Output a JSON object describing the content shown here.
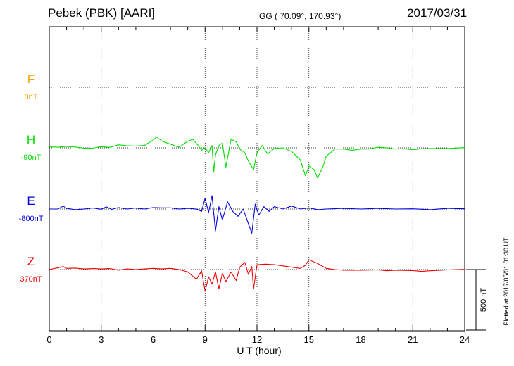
{
  "header": {
    "title": "Pebek (PBK)  [AARI]",
    "coords": "GG ( 70.09°, 170.93°)",
    "date": "2017/03/31"
  },
  "plotted_note": "Plotted at 2017/05/01 01:30 UT",
  "scale_bar": {
    "label": "500 nT",
    "nT": 500
  },
  "chart_data": {
    "type": "line",
    "xlabel": "U T (hour)",
    "xlim": [
      0,
      24
    ],
    "x_ticks": [
      0,
      3,
      6,
      9,
      12,
      15,
      18,
      21,
      24
    ],
    "grid": true,
    "series": [
      {
        "name": "F",
        "offset": "0nT",
        "color": "#f5a300",
        "baseline_nT": 0,
        "values": []
      },
      {
        "name": "H",
        "offset": "-90nT",
        "color": "#00dd00",
        "baseline_nT": -90,
        "values": [
          [
            0,
            8
          ],
          [
            0.5,
            5
          ],
          [
            1,
            12
          ],
          [
            1.5,
            7
          ],
          [
            2,
            -3
          ],
          [
            2.5,
            -3
          ],
          [
            3,
            10
          ],
          [
            3.5,
            4
          ],
          [
            4,
            25
          ],
          [
            4.5,
            17
          ],
          [
            5,
            15
          ],
          [
            5.5,
            20
          ],
          [
            6,
            65
          ],
          [
            6.2,
            90
          ],
          [
            6.5,
            55
          ],
          [
            7,
            30
          ],
          [
            7.5,
            5
          ],
          [
            8,
            55
          ],
          [
            8.3,
            70
          ],
          [
            8.6,
            20
          ],
          [
            8.8,
            -20
          ],
          [
            9.0,
            0
          ],
          [
            9.2,
            -40
          ],
          [
            9.4,
            20
          ],
          [
            9.5,
            -200
          ],
          [
            9.6,
            -60
          ],
          [
            9.8,
            20
          ],
          [
            10.0,
            40
          ],
          [
            10.2,
            -160
          ],
          [
            10.5,
            70
          ],
          [
            10.8,
            50
          ],
          [
            11.0,
            -10
          ],
          [
            11.3,
            -40
          ],
          [
            11.5,
            -110
          ],
          [
            11.8,
            -180
          ],
          [
            12.0,
            -40
          ],
          [
            12.3,
            20
          ],
          [
            12.6,
            -50
          ],
          [
            13.0,
            -5
          ],
          [
            13.5,
            0
          ],
          [
            14.0,
            -30
          ],
          [
            14.5,
            -100
          ],
          [
            14.8,
            -230
          ],
          [
            15.0,
            -150
          ],
          [
            15.3,
            -180
          ],
          [
            15.5,
            -250
          ],
          [
            15.8,
            -160
          ],
          [
            16.0,
            -70
          ],
          [
            16.5,
            -10
          ],
          [
            17.0,
            -10
          ],
          [
            17.5,
            -20
          ],
          [
            18.0,
            -10
          ],
          [
            18.5,
            -10
          ],
          [
            19.0,
            5
          ],
          [
            19.5,
            0
          ],
          [
            20.0,
            -10
          ],
          [
            20.5,
            -8
          ],
          [
            21.0,
            -15
          ],
          [
            21.5,
            -8
          ],
          [
            22.0,
            -5
          ],
          [
            23.0,
            -5
          ],
          [
            24.0,
            2
          ]
        ]
      },
      {
        "name": "E",
        "offset": "-800nT",
        "color": "#0000dd",
        "baseline_nT": -800,
        "values": [
          [
            0,
            0
          ],
          [
            0.5,
            0
          ],
          [
            0.8,
            25
          ],
          [
            1,
            5
          ],
          [
            1.5,
            -5
          ],
          [
            2,
            0
          ],
          [
            2.5,
            8
          ],
          [
            3,
            -2
          ],
          [
            3.3,
            18
          ],
          [
            3.6,
            -3
          ],
          [
            4,
            12
          ],
          [
            4.5,
            0
          ],
          [
            5,
            8
          ],
          [
            5.5,
            0
          ],
          [
            6,
            12
          ],
          [
            6.5,
            10
          ],
          [
            7,
            10
          ],
          [
            7.5,
            0
          ],
          [
            8,
            5
          ],
          [
            8.5,
            0
          ],
          [
            8.8,
            -20
          ],
          [
            9.0,
            90
          ],
          [
            9.2,
            -30
          ],
          [
            9.4,
            110
          ],
          [
            9.6,
            -180
          ],
          [
            9.8,
            20
          ],
          [
            10.0,
            -90
          ],
          [
            10.3,
            60
          ],
          [
            10.6,
            -20
          ],
          [
            10.9,
            -60
          ],
          [
            11.2,
            0
          ],
          [
            11.5,
            -120
          ],
          [
            11.7,
            -200
          ],
          [
            11.9,
            40
          ],
          [
            12.1,
            -50
          ],
          [
            12.4,
            20
          ],
          [
            12.7,
            -20
          ],
          [
            13.0,
            20
          ],
          [
            13.5,
            0
          ],
          [
            14.0,
            25
          ],
          [
            14.5,
            0
          ],
          [
            15.0,
            10
          ],
          [
            15.5,
            -5
          ],
          [
            16.0,
            0
          ],
          [
            17.0,
            5
          ],
          [
            18.0,
            0
          ],
          [
            19.0,
            5
          ],
          [
            20.0,
            0
          ],
          [
            21.0,
            2
          ],
          [
            22.0,
            -5
          ],
          [
            23.0,
            5
          ],
          [
            24.0,
            2
          ]
        ]
      },
      {
        "name": "Z",
        "offset": "370nT",
        "color": "#ee0000",
        "baseline_nT": 370,
        "values": [
          [
            0,
            0
          ],
          [
            0.5,
            15
          ],
          [
            0.8,
            25
          ],
          [
            1,
            10
          ],
          [
            1.5,
            12
          ],
          [
            2,
            5
          ],
          [
            2.5,
            8
          ],
          [
            3,
            5
          ],
          [
            3.5,
            8
          ],
          [
            4,
            -5
          ],
          [
            4.5,
            5
          ],
          [
            5,
            0
          ],
          [
            5.5,
            5
          ],
          [
            6,
            10
          ],
          [
            6.5,
            5
          ],
          [
            7,
            10
          ],
          [
            7.5,
            0
          ],
          [
            8,
            -20
          ],
          [
            8.5,
            -80
          ],
          [
            8.8,
            -10
          ],
          [
            9.0,
            -180
          ],
          [
            9.2,
            -60
          ],
          [
            9.4,
            -120
          ],
          [
            9.6,
            -20
          ],
          [
            9.8,
            -160
          ],
          [
            10.0,
            -30
          ],
          [
            10.2,
            -100
          ],
          [
            10.5,
            -20
          ],
          [
            10.8,
            -90
          ],
          [
            11.0,
            20
          ],
          [
            11.3,
            60
          ],
          [
            11.5,
            -40
          ],
          [
            11.7,
            25
          ],
          [
            11.8,
            -160
          ],
          [
            12.0,
            40
          ],
          [
            12.5,
            45
          ],
          [
            13.0,
            40
          ],
          [
            13.5,
            30
          ],
          [
            14.0,
            20
          ],
          [
            14.5,
            10
          ],
          [
            14.8,
            35
          ],
          [
            15.0,
            80
          ],
          [
            15.5,
            50
          ],
          [
            16.0,
            10
          ],
          [
            16.5,
            0
          ],
          [
            17.0,
            -5
          ],
          [
            18.0,
            -5
          ],
          [
            19.0,
            -3
          ],
          [
            19.5,
            -10
          ],
          [
            20.0,
            -5
          ],
          [
            21.0,
            -8
          ],
          [
            21.5,
            -15
          ],
          [
            22.0,
            -10
          ],
          [
            23.0,
            -3
          ],
          [
            24.0,
            2
          ]
        ]
      }
    ]
  }
}
